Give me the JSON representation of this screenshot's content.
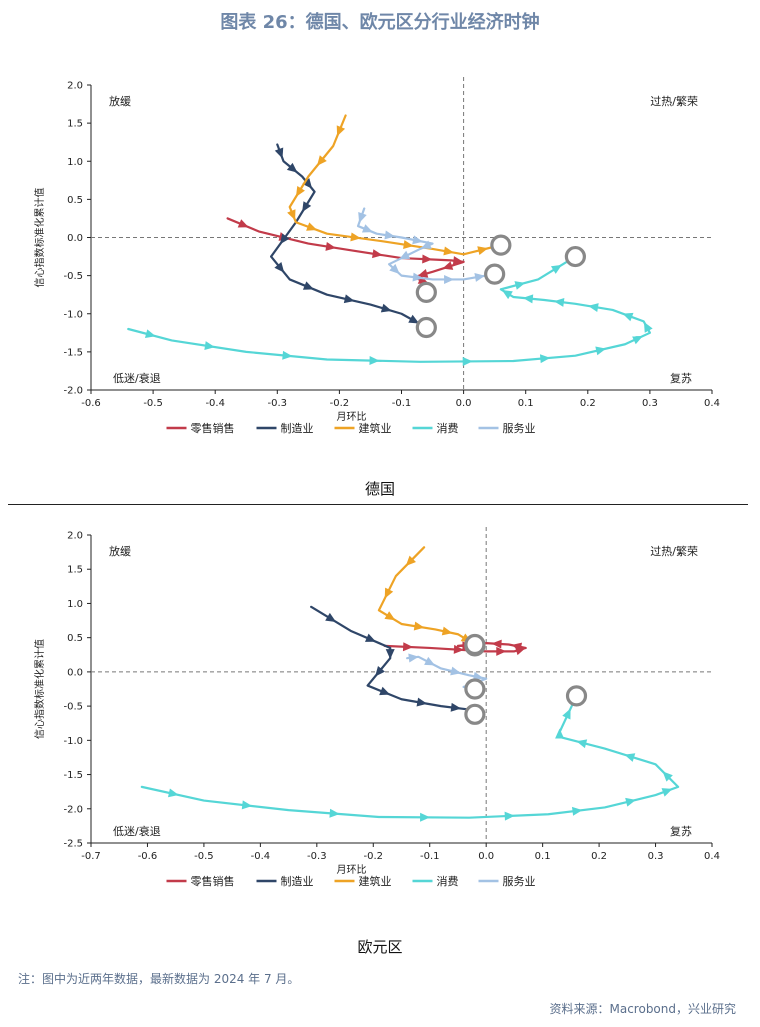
{
  "title": "图表 26：德国、欧元区分行业经济时钟",
  "legend": [
    {
      "name": "零售销售",
      "color": "#c23b4a"
    },
    {
      "name": "制造业",
      "color": "#2f4668"
    },
    {
      "name": "建筑业",
      "color": "#eea325"
    },
    {
      "name": "消费",
      "color": "#55d6d6"
    },
    {
      "name": "服务业",
      "color": "#a3c2e4"
    }
  ],
  "quadrants": {
    "top_left": "放缓",
    "top_right": "过热/繁荣",
    "bottom_left": "低迷/衰退",
    "bottom_right": "复苏"
  },
  "chart_data": [
    {
      "type": "line",
      "subplot": "德国",
      "xlabel": "月环比",
      "ylabel": "信心指数标准化累计值",
      "xlim": [
        -0.6,
        0.4
      ],
      "ylim": [
        -2.0,
        2.0
      ],
      "xticks": [
        -0.6,
        -0.5,
        -0.4,
        -0.3,
        -0.2,
        -0.1,
        0.0,
        0.1,
        0.2,
        0.3,
        0.4
      ],
      "yticks": [
        -2.0,
        -1.5,
        -1.0,
        -0.5,
        0.0,
        0.5,
        1.0,
        1.5,
        2.0
      ],
      "series": [
        {
          "name": "零售销售",
          "x": [
            -0.38,
            -0.33,
            -0.25,
            -0.18,
            -0.1,
            -0.02,
            0.0,
            -0.05,
            -0.08,
            -0.05,
            -0.06
          ],
          "y": [
            0.25,
            0.08,
            -0.08,
            -0.17,
            -0.27,
            -0.3,
            -0.32,
            -0.45,
            -0.52,
            -0.63,
            -0.72
          ]
        },
        {
          "name": "制造业",
          "x": [
            -0.3,
            -0.29,
            -0.26,
            -0.24,
            -0.27,
            -0.31,
            -0.28,
            -0.22,
            -0.15,
            -0.1,
            -0.06
          ],
          "y": [
            1.22,
            1.0,
            0.8,
            0.6,
            0.2,
            -0.25,
            -0.55,
            -0.75,
            -0.88,
            -1.0,
            -1.18
          ]
        },
        {
          "name": "建筑业",
          "x": [
            -0.19,
            -0.21,
            -0.25,
            -0.28,
            -0.27,
            -0.22,
            -0.13,
            -0.05,
            0.0,
            0.06
          ],
          "y": [
            1.6,
            1.2,
            0.8,
            0.4,
            0.2,
            0.05,
            -0.05,
            -0.15,
            -0.22,
            -0.1
          ]
        },
        {
          "name": "消费",
          "x": [
            -0.54,
            -0.47,
            -0.35,
            -0.22,
            -0.07,
            0.08,
            0.18,
            0.26,
            0.3,
            0.29,
            0.24,
            0.18,
            0.13,
            0.08,
            0.06,
            0.12,
            0.18
          ],
          "y": [
            -1.2,
            -1.35,
            -1.5,
            -1.6,
            -1.63,
            -1.62,
            -1.55,
            -1.4,
            -1.25,
            -1.1,
            -0.95,
            -0.87,
            -0.82,
            -0.78,
            -0.68,
            -0.55,
            -0.25
          ]
        },
        {
          "name": "服务业",
          "x": [
            -0.16,
            -0.17,
            -0.14,
            -0.1,
            -0.05,
            -0.07,
            -0.12,
            -0.1,
            -0.05,
            0.0,
            0.05
          ],
          "y": [
            0.38,
            0.15,
            0.05,
            0.0,
            -0.08,
            -0.15,
            -0.35,
            -0.5,
            -0.55,
            -0.55,
            -0.48
          ]
        }
      ]
    },
    {
      "type": "line",
      "subplot": "欧元区",
      "xlabel": "月环比",
      "ylabel": "信心指数标准化累计值",
      "xlim": [
        -0.7,
        0.4
      ],
      "ylim": [
        -2.5,
        2.0
      ],
      "xticks": [
        -0.7,
        -0.6,
        -0.5,
        -0.4,
        -0.3,
        -0.2,
        -0.1,
        0.0,
        0.1,
        0.2,
        0.3,
        0.4
      ],
      "yticks": [
        -2.5,
        -2.0,
        -1.5,
        -1.0,
        -0.5,
        0.0,
        0.5,
        1.0,
        1.5,
        2.0
      ],
      "series": [
        {
          "name": "零售销售",
          "x": [
            -0.18,
            -0.1,
            0.0,
            0.05,
            0.07,
            0.04,
            0.0,
            -0.05,
            -0.02
          ],
          "y": [
            0.38,
            0.35,
            0.3,
            0.3,
            0.35,
            0.4,
            0.42,
            0.38,
            0.38
          ]
        },
        {
          "name": "制造业",
          "x": [
            -0.31,
            -0.24,
            -0.17,
            -0.17,
            -0.21,
            -0.15,
            -0.08,
            -0.03,
            -0.02
          ],
          "y": [
            0.95,
            0.6,
            0.35,
            0.2,
            -0.2,
            -0.4,
            -0.5,
            -0.55,
            -0.62
          ]
        },
        {
          "name": "建筑业",
          "x": [
            -0.11,
            -0.16,
            -0.19,
            -0.15,
            -0.09,
            -0.05,
            -0.02
          ],
          "y": [
            1.82,
            1.4,
            0.9,
            0.7,
            0.62,
            0.55,
            0.4
          ]
        },
        {
          "name": "消费",
          "x": [
            -0.61,
            -0.5,
            -0.35,
            -0.19,
            -0.03,
            0.11,
            0.21,
            0.3,
            0.34,
            0.3,
            0.21,
            0.13,
            0.13,
            0.16
          ],
          "y": [
            -1.68,
            -1.88,
            -2.02,
            -2.12,
            -2.13,
            -2.08,
            -1.98,
            -1.8,
            -1.68,
            -1.35,
            -1.12,
            -0.95,
            -0.88,
            -0.35
          ]
        },
        {
          "name": "服务业",
          "x": [
            -0.14,
            -0.12,
            -0.08,
            -0.03,
            0.0,
            -0.04,
            -0.02
          ],
          "y": [
            0.2,
            0.22,
            0.05,
            -0.05,
            -0.1,
            -0.22,
            -0.25
          ]
        }
      ]
    }
  ],
  "captions": [
    "德国",
    "欧元区"
  ],
  "note": "注：图中为近两年数据，最新数据为 2024 年 7 月。",
  "source": "资料来源：Macrobond，兴业研究"
}
